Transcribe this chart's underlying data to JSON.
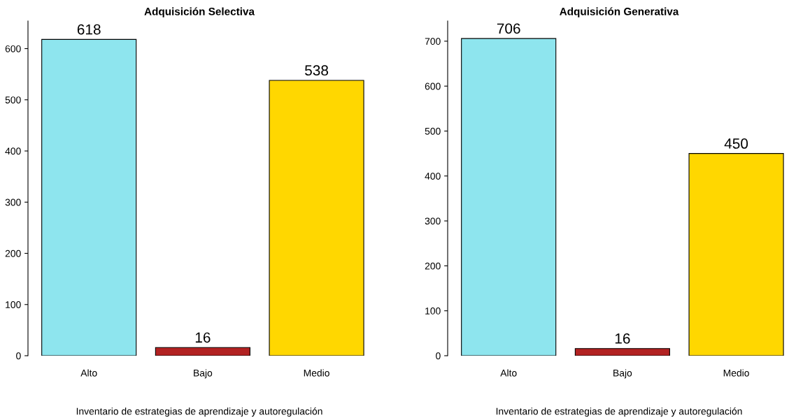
{
  "chart_data": [
    {
      "type": "bar",
      "title": "Adquisición Selectiva",
      "xlabel": "Inventario de estrategias de aprendizaje y autoregulación",
      "categories": [
        "Alto",
        "Bajo",
        "Medio"
      ],
      "values": [
        618,
        16,
        538
      ],
      "colors": [
        "#8ee5ee",
        "#b22222",
        "#ffd700"
      ],
      "ylim": [
        0,
        654
      ],
      "yticks": [
        0,
        100,
        200,
        300,
        400,
        500,
        600
      ],
      "data_labels": true,
      "grid": false,
      "legend": false
    },
    {
      "type": "bar",
      "title": "Adquisición Generativa",
      "xlabel": "Inventario de estrategias de aprendizaje y autoregulación",
      "categories": [
        "Alto",
        "Bajo",
        "Medio"
      ],
      "values": [
        706,
        16,
        450
      ],
      "colors": [
        "#8ee5ee",
        "#b22222",
        "#ffd700"
      ],
      "ylim": [
        0,
        745
      ],
      "yticks": [
        0,
        100,
        200,
        300,
        400,
        500,
        600,
        700
      ],
      "data_labels": true,
      "grid": false,
      "legend": false
    }
  ]
}
